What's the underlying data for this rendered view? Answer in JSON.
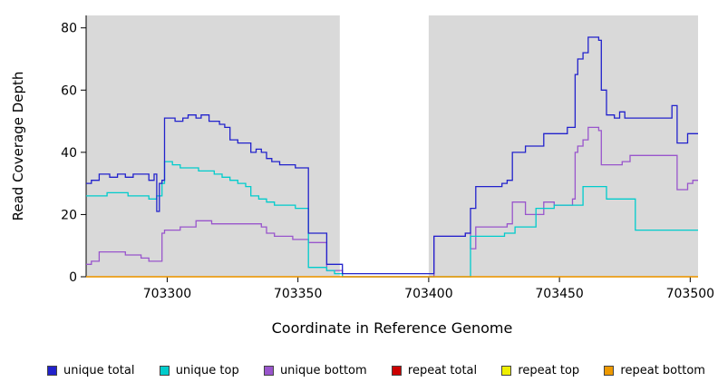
{
  "chart_data": {
    "type": "line",
    "title": "",
    "xlabel": "Coordinate in Reference Genome",
    "ylabel": "Read Coverage Depth",
    "xlim": [
      703269,
      703503
    ],
    "ylim": [
      0,
      84
    ],
    "x_ticks": [
      703300,
      703350,
      703400,
      703450,
      703500
    ],
    "y_ticks": [
      0,
      20,
      40,
      60,
      80
    ],
    "plot_bg": "#d9d9d9",
    "gap_band": {
      "x0": 703366,
      "x1": 703400,
      "color": "#ffffff"
    },
    "grid": false,
    "step": true,
    "legend_position": "bottom",
    "series": [
      {
        "name": "unique bottom",
        "color": "#9955cc",
        "points": [
          [
            703269,
            4
          ],
          [
            703271,
            5
          ],
          [
            703274,
            8
          ],
          [
            703278,
            8
          ],
          [
            703281,
            8
          ],
          [
            703284,
            7
          ],
          [
            703287,
            7
          ],
          [
            703290,
            6
          ],
          [
            703293,
            5
          ],
          [
            703296,
            5
          ],
          [
            703298,
            14
          ],
          [
            703299,
            15
          ],
          [
            703302,
            15
          ],
          [
            703305,
            16
          ],
          [
            703308,
            16
          ],
          [
            703311,
            18
          ],
          [
            703314,
            18
          ],
          [
            703317,
            17
          ],
          [
            703320,
            17
          ],
          [
            703324,
            17
          ],
          [
            703328,
            17
          ],
          [
            703332,
            17
          ],
          [
            703336,
            16
          ],
          [
            703338,
            14
          ],
          [
            703341,
            13
          ],
          [
            703345,
            13
          ],
          [
            703348,
            12
          ],
          [
            703352,
            12
          ],
          [
            703354,
            11
          ],
          [
            703358,
            11
          ],
          [
            703361,
            2
          ],
          [
            703364,
            2
          ],
          [
            703367,
            0
          ],
          [
            703399,
            0
          ],
          [
            703402,
            13
          ],
          [
            703406,
            13
          ],
          [
            703410,
            13
          ],
          [
            703414,
            14
          ],
          [
            703416,
            9
          ],
          [
            703418,
            16
          ],
          [
            703422,
            16
          ],
          [
            703426,
            16
          ],
          [
            703430,
            17
          ],
          [
            703432,
            24
          ],
          [
            703435,
            24
          ],
          [
            703437,
            20
          ],
          [
            703441,
            20
          ],
          [
            703444,
            24
          ],
          [
            703448,
            23
          ],
          [
            703452,
            23
          ],
          [
            703455,
            25
          ],
          [
            703456,
            40
          ],
          [
            703457,
            42
          ],
          [
            703459,
            44
          ],
          [
            703461,
            48
          ],
          [
            703463,
            48
          ],
          [
            703465,
            47
          ],
          [
            703466,
            36
          ],
          [
            703468,
            36
          ],
          [
            703471,
            36
          ],
          [
            703474,
            37
          ],
          [
            703477,
            39
          ],
          [
            703482,
            39
          ],
          [
            703487,
            39
          ],
          [
            703491,
            39
          ],
          [
            703493,
            39
          ],
          [
            703495,
            28
          ],
          [
            703497,
            28
          ],
          [
            703499,
            30
          ],
          [
            703501,
            31
          ],
          [
            703503,
            31
          ]
        ]
      },
      {
        "name": "unique top",
        "color": "#00cccc",
        "points": [
          [
            703269,
            26
          ],
          [
            703273,
            26
          ],
          [
            703277,
            27
          ],
          [
            703281,
            27
          ],
          [
            703285,
            26
          ],
          [
            703289,
            26
          ],
          [
            703293,
            25
          ],
          [
            703296,
            26
          ],
          [
            703298,
            30
          ],
          [
            703299,
            37
          ],
          [
            703302,
            36
          ],
          [
            703305,
            35
          ],
          [
            703308,
            35
          ],
          [
            703312,
            34
          ],
          [
            703315,
            34
          ],
          [
            703318,
            33
          ],
          [
            703321,
            32
          ],
          [
            703324,
            31
          ],
          [
            703327,
            30
          ],
          [
            703330,
            29
          ],
          [
            703332,
            26
          ],
          [
            703335,
            25
          ],
          [
            703338,
            24
          ],
          [
            703341,
            23
          ],
          [
            703345,
            23
          ],
          [
            703349,
            22
          ],
          [
            703352,
            22
          ],
          [
            703354,
            3
          ],
          [
            703358,
            3
          ],
          [
            703361,
            2
          ],
          [
            703364,
            1
          ],
          [
            703367,
            0
          ],
          [
            703399,
            0
          ],
          [
            703402,
            0
          ],
          [
            703414,
            0
          ],
          [
            703416,
            13
          ],
          [
            703420,
            13
          ],
          [
            703425,
            13
          ],
          [
            703429,
            14
          ],
          [
            703433,
            16
          ],
          [
            703437,
            16
          ],
          [
            703441,
            22
          ],
          [
            703444,
            22
          ],
          [
            703448,
            23
          ],
          [
            703452,
            23
          ],
          [
            703456,
            23
          ],
          [
            703459,
            29
          ],
          [
            703463,
            29
          ],
          [
            703466,
            29
          ],
          [
            703468,
            25
          ],
          [
            703472,
            25
          ],
          [
            703476,
            25
          ],
          [
            703479,
            15
          ],
          [
            703485,
            15
          ],
          [
            703490,
            15
          ],
          [
            703495,
            15
          ],
          [
            703499,
            15
          ],
          [
            703503,
            15
          ]
        ]
      },
      {
        "name": "unique total",
        "color": "#2222cc",
        "points": [
          [
            703269,
            30
          ],
          [
            703271,
            31
          ],
          [
            703274,
            33
          ],
          [
            703278,
            32
          ],
          [
            703281,
            33
          ],
          [
            703284,
            32
          ],
          [
            703287,
            33
          ],
          [
            703290,
            33
          ],
          [
            703293,
            31
          ],
          [
            703295,
            33
          ],
          [
            703296,
            21
          ],
          [
            703297,
            30
          ],
          [
            703298,
            31
          ],
          [
            703299,
            51
          ],
          [
            703303,
            50
          ],
          [
            703306,
            51
          ],
          [
            703308,
            52
          ],
          [
            703311,
            51
          ],
          [
            703313,
            52
          ],
          [
            703316,
            50
          ],
          [
            703318,
            50
          ],
          [
            703320,
            49
          ],
          [
            703322,
            48
          ],
          [
            703324,
            44
          ],
          [
            703327,
            43
          ],
          [
            703330,
            43
          ],
          [
            703332,
            40
          ],
          [
            703334,
            41
          ],
          [
            703336,
            40
          ],
          [
            703338,
            38
          ],
          [
            703340,
            37
          ],
          [
            703343,
            36
          ],
          [
            703346,
            36
          ],
          [
            703349,
            35
          ],
          [
            703352,
            35
          ],
          [
            703354,
            14
          ],
          [
            703358,
            14
          ],
          [
            703361,
            4
          ],
          [
            703364,
            4
          ],
          [
            703367,
            1
          ],
          [
            703380,
            1
          ],
          [
            703395,
            1
          ],
          [
            703401,
            1
          ],
          [
            703402,
            13
          ],
          [
            703406,
            13
          ],
          [
            703410,
            13
          ],
          [
            703414,
            14
          ],
          [
            703416,
            22
          ],
          [
            703418,
            29
          ],
          [
            703422,
            29
          ],
          [
            703426,
            29
          ],
          [
            703428,
            30
          ],
          [
            703430,
            31
          ],
          [
            703432,
            40
          ],
          [
            703435,
            40
          ],
          [
            703437,
            42
          ],
          [
            703441,
            42
          ],
          [
            703444,
            46
          ],
          [
            703448,
            46
          ],
          [
            703451,
            46
          ],
          [
            703453,
            48
          ],
          [
            703455,
            48
          ],
          [
            703456,
            65
          ],
          [
            703457,
            70
          ],
          [
            703459,
            72
          ],
          [
            703461,
            77
          ],
          [
            703463,
            77
          ],
          [
            703465,
            76
          ],
          [
            703466,
            60
          ],
          [
            703468,
            52
          ],
          [
            703471,
            51
          ],
          [
            703473,
            53
          ],
          [
            703475,
            51
          ],
          [
            703480,
            51
          ],
          [
            703485,
            51
          ],
          [
            703490,
            51
          ],
          [
            703493,
            55
          ],
          [
            703495,
            43
          ],
          [
            703497,
            43
          ],
          [
            703499,
            46
          ],
          [
            703503,
            46
          ]
        ]
      },
      {
        "name": "repeat total",
        "color": "#cc0000",
        "points": [
          [
            703269,
            0
          ],
          [
            703503,
            0
          ]
        ]
      },
      {
        "name": "repeat top",
        "color": "#eeee00",
        "points": [
          [
            703269,
            0
          ],
          [
            703503,
            0
          ]
        ]
      },
      {
        "name": "repeat bottom",
        "color": "#ee9900",
        "points": [
          [
            703269,
            0
          ],
          [
            703503,
            0
          ]
        ]
      }
    ],
    "legend": [
      {
        "label": "unique total",
        "color": "#2222cc"
      },
      {
        "label": "unique top",
        "color": "#00cccc"
      },
      {
        "label": "unique bottom",
        "color": "#9955cc"
      },
      {
        "label": "repeat total",
        "color": "#cc0000"
      },
      {
        "label": "repeat top",
        "color": "#eeee00"
      },
      {
        "label": "repeat bottom",
        "color": "#ee9900"
      }
    ]
  }
}
